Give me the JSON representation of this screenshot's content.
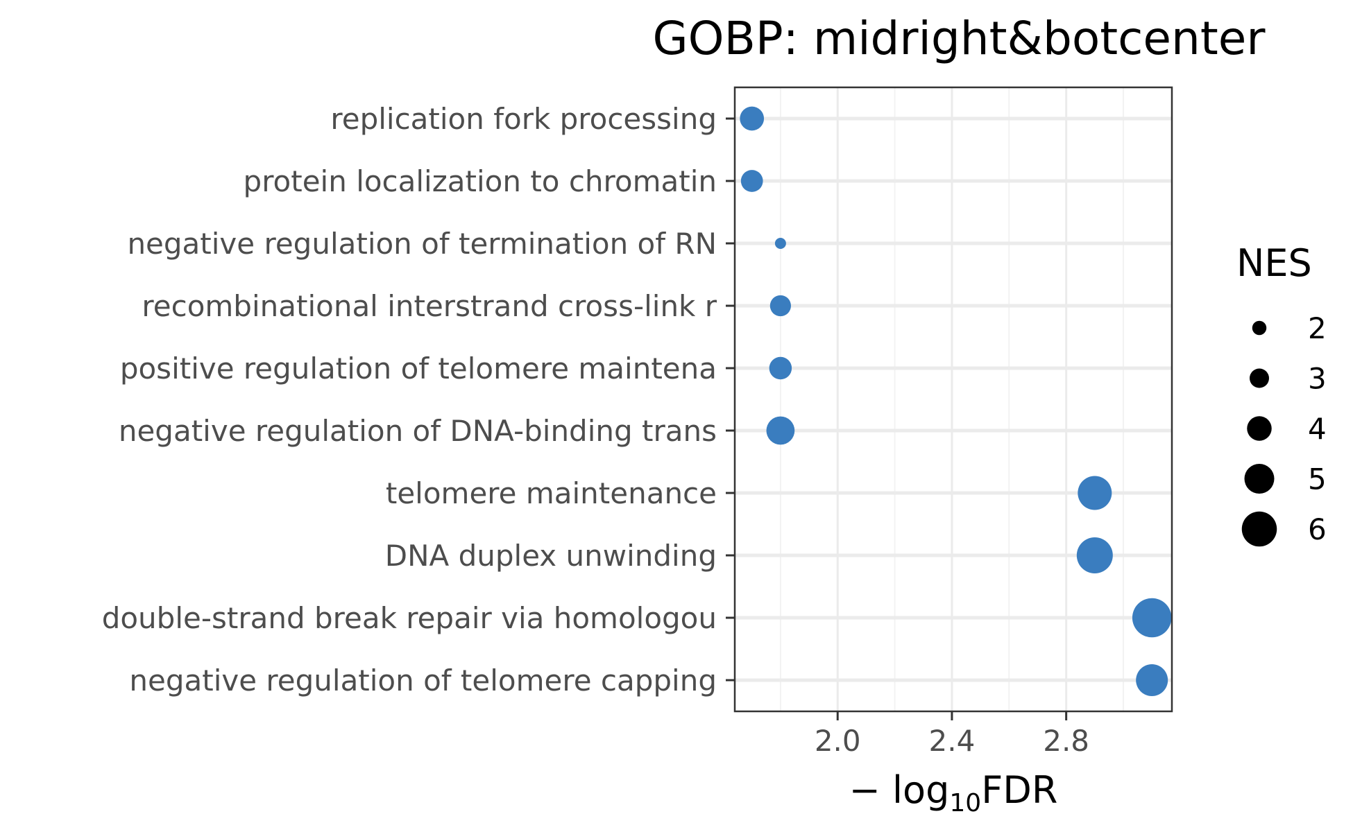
{
  "chart_data": {
    "type": "scatter",
    "title": "GOBP: midright&botcenter",
    "xlabel": "−log10FDR",
    "xlabel_parts": {
      "prefix": "− log",
      "subscript": "10",
      "suffix": "FDR"
    },
    "xlim": [
      1.64,
      3.17
    ],
    "xticks": [
      2.0,
      2.4,
      2.8
    ],
    "xtick_labels": [
      "2.0",
      "2.4",
      "2.8"
    ],
    "x_minor_gridlines": [
      1.8,
      2.2,
      2.6,
      3.0
    ],
    "grid": true,
    "categories": [
      "replication fork processing",
      "protein localization to chromatin",
      "negative regulation of termination of RN",
      "recombinational interstrand cross-link r",
      "positive regulation of telomere maintena",
      "negative regulation of DNA-binding trans",
      "telomere maintenance",
      "DNA duplex unwinding",
      "double-strand break repair via homologou",
      "negative regulation of telomere capping"
    ],
    "x": [
      1.7,
      1.7,
      1.8,
      1.8,
      1.8,
      1.8,
      2.9,
      2.9,
      3.1,
      3.1
    ],
    "size_values": [
      3.9,
      3.5,
      1.4,
      3.3,
      3.6,
      4.7,
      5.8,
      6.2,
      6.8,
      5.4
    ],
    "point_color": "#3a7dbf",
    "legend": {
      "title": "NES",
      "placement": "right",
      "values": [
        2,
        3,
        4,
        5,
        6
      ],
      "labels": [
        "2",
        "3",
        "4",
        "5",
        "6"
      ]
    }
  }
}
